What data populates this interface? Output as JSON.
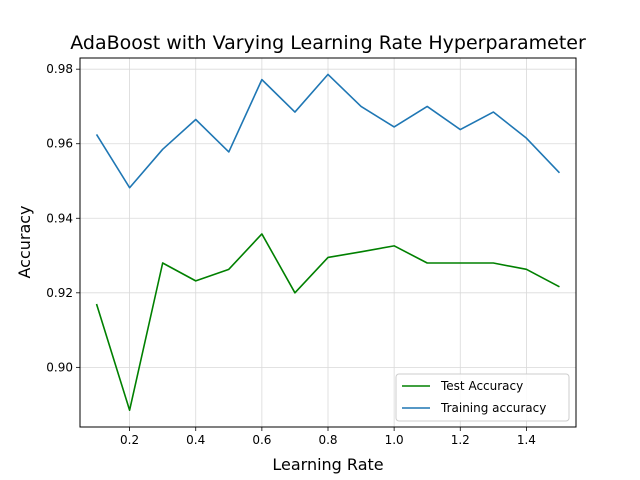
{
  "chart_data": {
    "type": "line",
    "title": "AdaBoost with Varying Learning Rate Hyperparameter",
    "xlabel": "Learning Rate",
    "ylabel": "Accuracy",
    "xlim": [
      0.05,
      1.55
    ],
    "ylim": [
      0.884,
      0.983
    ],
    "xticks": [
      "0.2",
      "0.4",
      "0.6",
      "0.8",
      "1.0",
      "1.2",
      "1.4"
    ],
    "yticks": [
      "0.90",
      "0.92",
      "0.94",
      "0.96",
      "0.98"
    ],
    "grid": true,
    "legend_position": "lower-right",
    "x": [
      0.1,
      0.2,
      0.3,
      0.4,
      0.5,
      0.6,
      0.7,
      0.8,
      0.9,
      1.0,
      1.1,
      1.2,
      1.3,
      1.4,
      1.5
    ],
    "series": [
      {
        "name": "Test Accuracy",
        "color": "#008000",
        "values": [
          0.917,
          0.8885,
          0.928,
          0.9232,
          0.9263,
          0.9358,
          0.92,
          0.9295,
          0.931,
          0.9326,
          0.928,
          0.928,
          0.928,
          0.9263,
          0.9216
        ]
      },
      {
        "name": "Training accuracy",
        "color": "#1f77b4",
        "values": [
          0.9625,
          0.9482,
          0.9585,
          0.9665,
          0.9578,
          0.9772,
          0.9685,
          0.9786,
          0.97,
          0.9645,
          0.97,
          0.9638,
          0.9685,
          0.9615,
          0.9522
        ]
      }
    ]
  }
}
